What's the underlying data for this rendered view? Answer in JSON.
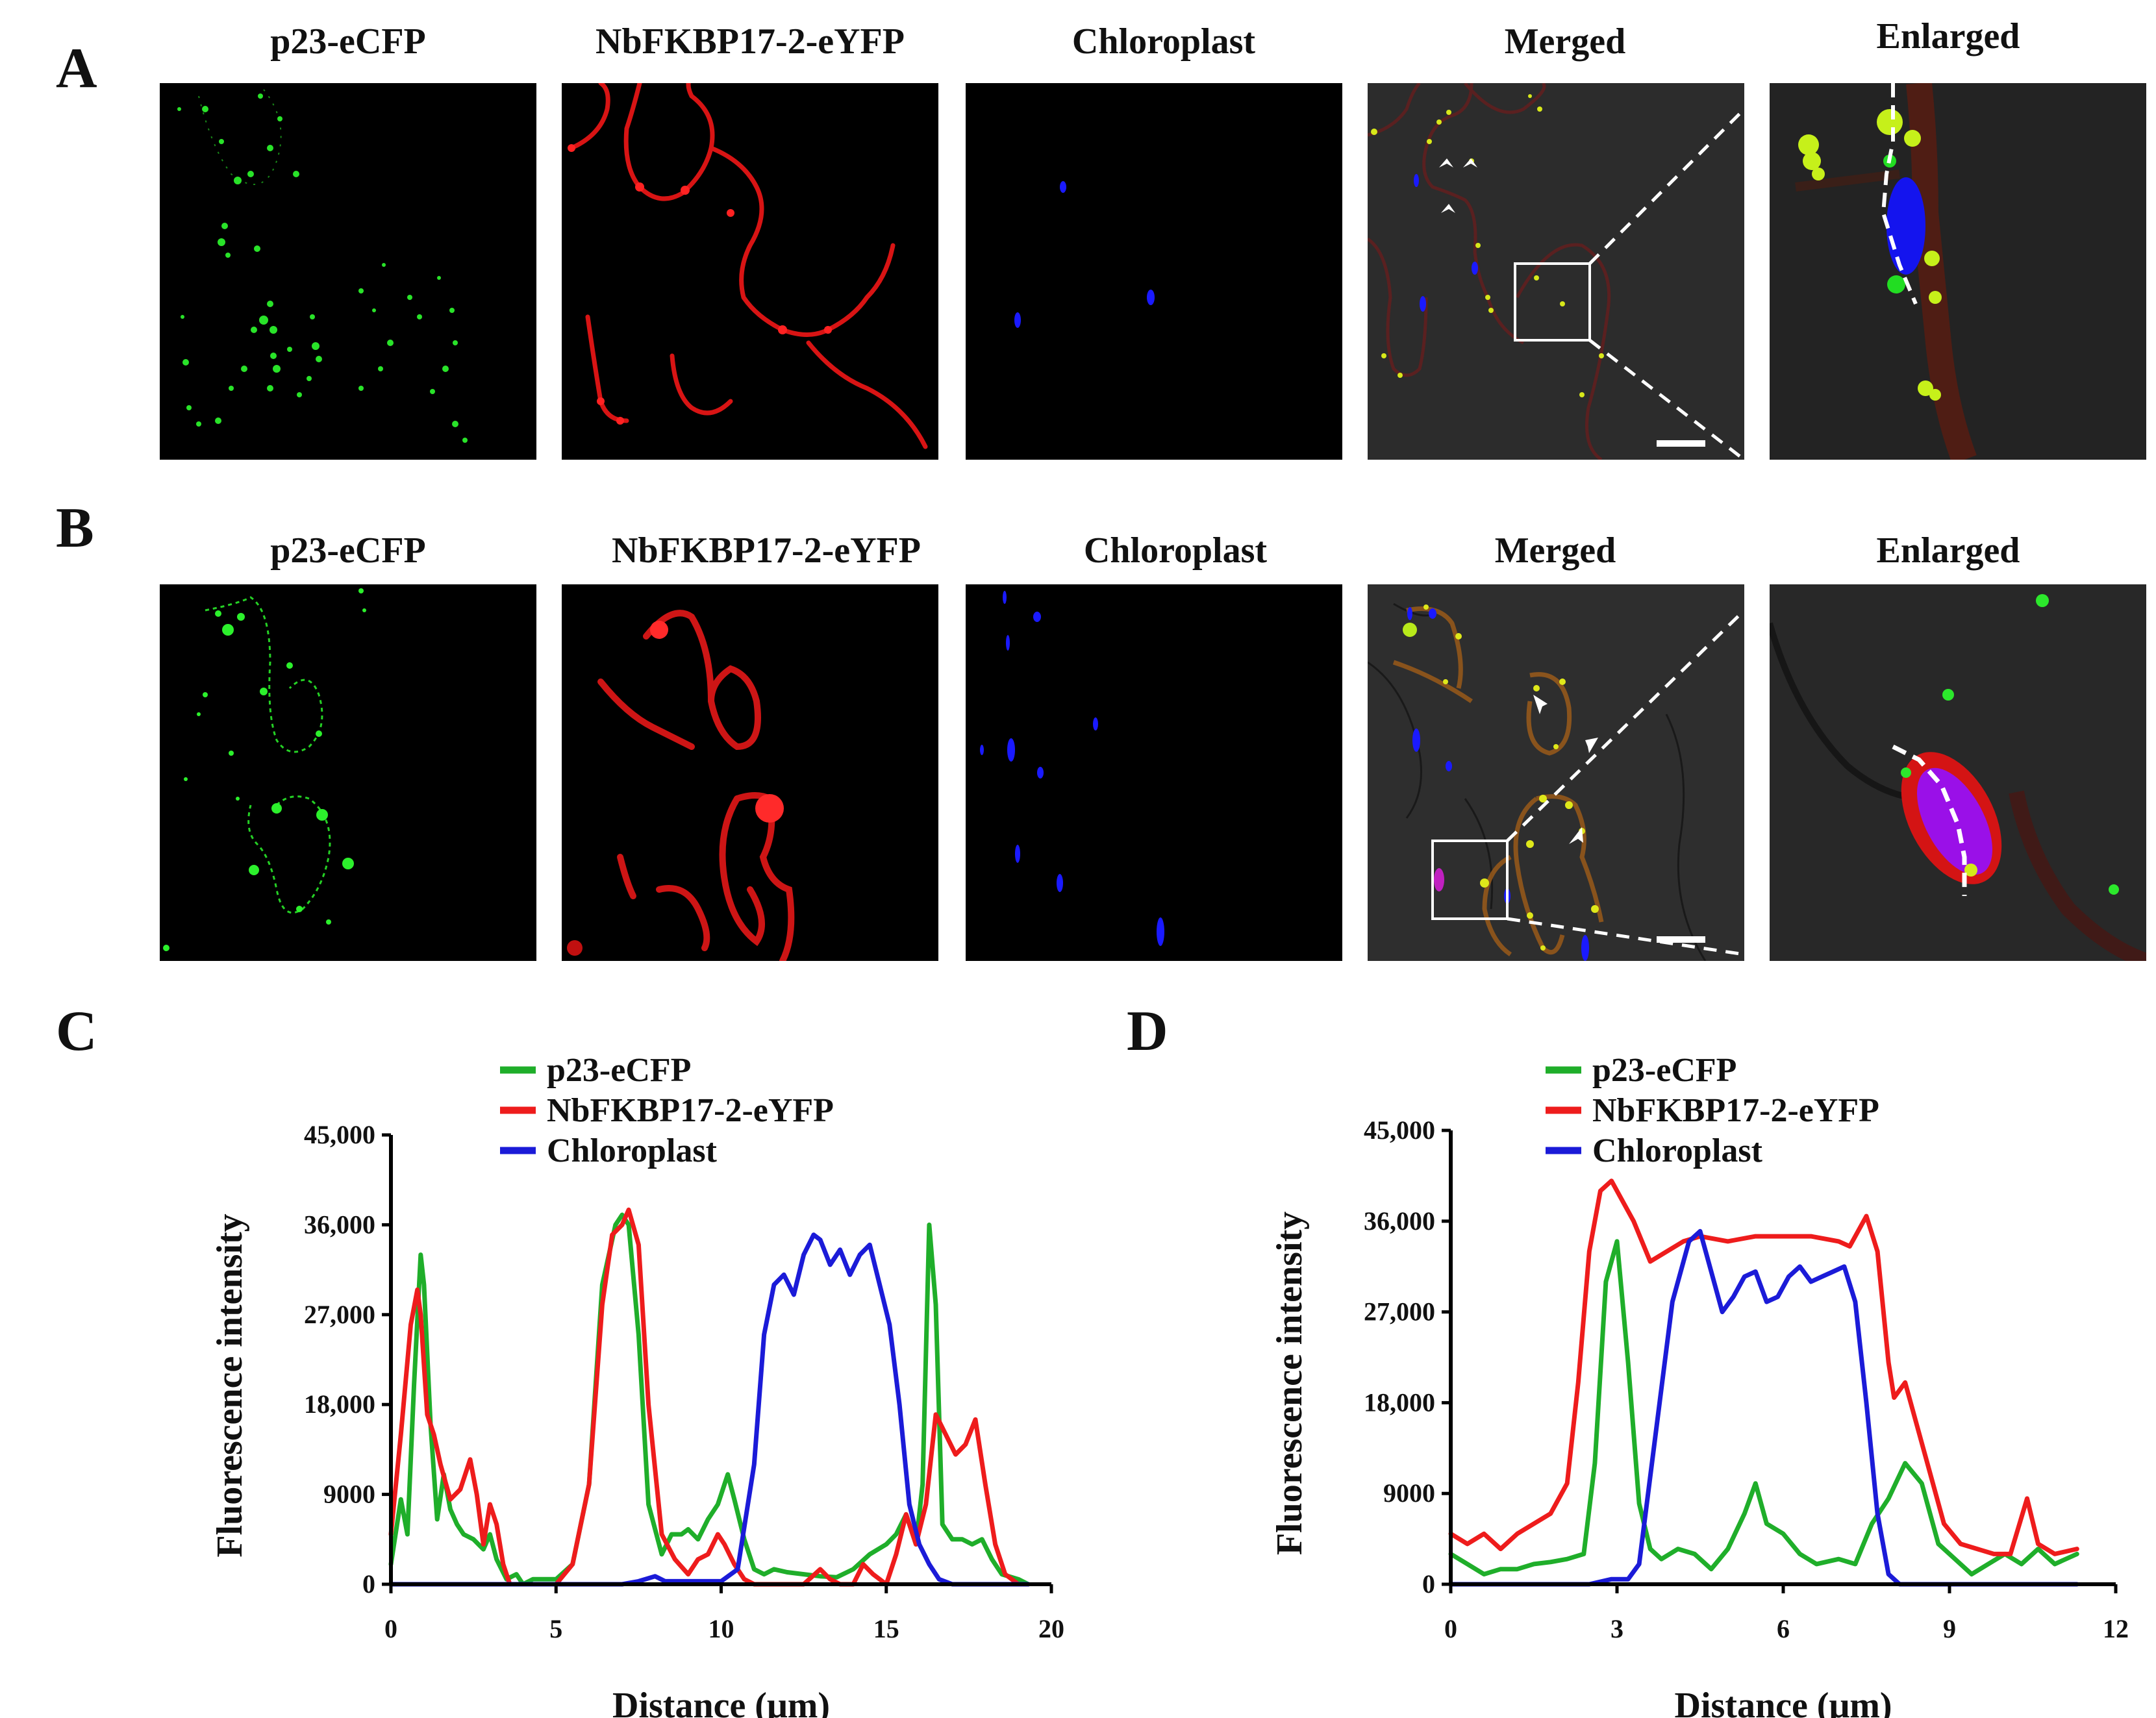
{
  "figure": {
    "panel_labels": {
      "A": "A",
      "B": "B",
      "C": "C",
      "D": "D"
    },
    "row_A": {
      "titles": [
        "p23-eCFP",
        "NbFKBP17-2-eYFP",
        "Chloroplast",
        "Merged",
        "Enlarged"
      ]
    },
    "row_B": {
      "titles": [
        "p23-eCFP",
        "NbFKBP17-2-eYFP",
        "Chloroplast",
        "Merged",
        "Enlarged"
      ]
    },
    "channel_colors": {
      "p23-eCFP": "#22cc22",
      "NbFKBP17-2-eYFP": "#ee1111",
      "Chloroplast": "#1111ee"
    }
  },
  "chart_data": [
    {
      "panel": "C",
      "type": "line",
      "title": "",
      "xlabel": "Distance (μm)",
      "ylabel": "Fluorescence intensity",
      "xlim": [
        0,
        20
      ],
      "ylim": [
        0,
        45000
      ],
      "xticks": [
        0,
        5,
        10,
        15,
        20
      ],
      "yticks": [
        0,
        9000,
        18000,
        27000,
        36000,
        45000
      ],
      "ytick_labels": [
        "0",
        "9000",
        "18,000",
        "27,000",
        "36,000",
        "45,000"
      ],
      "grid": false,
      "legend": {
        "position": "top",
        "entries": [
          "p23-eCFP",
          "NbFKBP17-2-eYFP",
          "Chloroplast"
        ]
      },
      "series": [
        {
          "name": "p23-eCFP",
          "color": "#1fae2a",
          "x": [
            0,
            0.3,
            0.5,
            0.7,
            0.9,
            1.0,
            1.2,
            1.4,
            1.6,
            1.8,
            2.0,
            2.2,
            2.5,
            2.8,
            3.0,
            3.2,
            3.5,
            3.8,
            4.0,
            4.3,
            5.0,
            5.5,
            6.0,
            6.4,
            6.8,
            7.0,
            7.2,
            7.5,
            7.8,
            8.2,
            8.5,
            8.8,
            9.0,
            9.3,
            9.6,
            9.9,
            10.2,
            10.4,
            10.7,
            11.0,
            11.3,
            11.6,
            12.0,
            12.5,
            13.0,
            13.5,
            14.0,
            14.5,
            15.0,
            15.3,
            15.6,
            15.9,
            16.1,
            16.3,
            16.5,
            16.7,
            17.0,
            17.3,
            17.6,
            17.9,
            18.2,
            18.5,
            19.0,
            19.3
          ],
          "y": [
            2000,
            8500,
            5000,
            20000,
            33000,
            30000,
            16000,
            6500,
            11000,
            7500,
            6000,
            5000,
            4500,
            3500,
            5000,
            2500,
            500,
            1000,
            0,
            500,
            500,
            2000,
            10000,
            30000,
            36000,
            37000,
            36000,
            25000,
            8000,
            3000,
            5000,
            5000,
            5500,
            4500,
            6500,
            8000,
            11000,
            8500,
            4500,
            1500,
            1000,
            1500,
            1200,
            1000,
            800,
            700,
            1500,
            3000,
            4000,
            5000,
            7000,
            4000,
            10000,
            36000,
            28000,
            6000,
            4500,
            4500,
            4000,
            4500,
            2500,
            1000,
            500,
            0
          ]
        },
        {
          "name": "NbFKBP17-2-eYFP",
          "color": "#ee1c1c",
          "x": [
            0,
            0.3,
            0.6,
            0.8,
            0.9,
            1.1,
            1.3,
            1.5,
            1.8,
            2.1,
            2.4,
            2.6,
            2.8,
            3.0,
            3.2,
            3.4,
            3.6,
            3.8,
            4.0,
            5.0,
            5.5,
            6.0,
            6.4,
            6.7,
            7.0,
            7.2,
            7.5,
            7.8,
            8.2,
            8.6,
            9.0,
            9.3,
            9.6,
            9.9,
            10.1,
            10.4,
            10.7,
            11.0,
            11.5,
            12.0,
            12.5,
            13.0,
            13.3,
            13.6,
            14.0,
            14.3,
            14.6,
            15.0,
            15.3,
            15.6,
            15.9,
            16.2,
            16.5,
            16.8,
            17.1,
            17.4,
            17.7,
            18.0,
            18.3,
            18.6,
            19.0
          ],
          "y": [
            5000,
            15000,
            26000,
            29500,
            27000,
            17000,
            15000,
            12000,
            8500,
            9500,
            12500,
            9000,
            4000,
            8000,
            6000,
            2000,
            0,
            0,
            0,
            0,
            2000,
            10000,
            28000,
            35000,
            36000,
            37500,
            34000,
            18000,
            5000,
            2500,
            1000,
            2500,
            3000,
            5000,
            4000,
            2000,
            500,
            0,
            0,
            0,
            0,
            1500,
            500,
            0,
            0,
            2000,
            1000,
            0,
            3000,
            7000,
            4000,
            8000,
            17000,
            15000,
            13000,
            14000,
            16500,
            10000,
            4000,
            1000,
            0
          ]
        },
        {
          "name": "Chloroplast",
          "color": "#1b1bd8",
          "x": [
            0,
            5,
            7.0,
            7.5,
            8.0,
            8.3,
            9.0,
            9.5,
            10.0,
            10.5,
            11.0,
            11.3,
            11.6,
            11.9,
            12.2,
            12.5,
            12.8,
            13.0,
            13.3,
            13.6,
            13.9,
            14.2,
            14.5,
            14.8,
            15.1,
            15.4,
            15.7,
            16.0,
            16.3,
            16.6,
            17.0,
            19.3
          ],
          "y": [
            0,
            0,
            0,
            300,
            800,
            300,
            300,
            300,
            300,
            1500,
            12000,
            25000,
            30000,
            31000,
            29000,
            33000,
            35000,
            34500,
            32000,
            33500,
            31000,
            33000,
            34000,
            30000,
            26000,
            18000,
            8000,
            4000,
            2000,
            500,
            0,
            0
          ]
        }
      ]
    },
    {
      "panel": "D",
      "type": "line",
      "title": "",
      "xlabel": "Distance (μm)",
      "ylabel": "Fluorescence intensity",
      "xlim": [
        0,
        12
      ],
      "ylim": [
        0,
        45000
      ],
      "xticks": [
        0,
        3,
        6,
        9,
        12
      ],
      "yticks": [
        0,
        9000,
        18000,
        27000,
        36000,
        45000
      ],
      "ytick_labels": [
        "0",
        "9000",
        "18,000",
        "27,000",
        "36,000",
        "45,000"
      ],
      "grid": false,
      "legend": {
        "position": "top",
        "entries": [
          "p23-eCFP",
          "NbFKBP17-2-eYFP",
          "Chloroplast"
        ]
      },
      "series": [
        {
          "name": "p23-eCFP",
          "color": "#1fae2a",
          "x": [
            0,
            0.3,
            0.6,
            0.9,
            1.2,
            1.5,
            1.8,
            2.1,
            2.4,
            2.6,
            2.8,
            3.0,
            3.2,
            3.4,
            3.6,
            3.8,
            4.1,
            4.4,
            4.7,
            5.0,
            5.3,
            5.5,
            5.7,
            6.0,
            6.3,
            6.6,
            7.0,
            7.3,
            7.6,
            7.9,
            8.2,
            8.5,
            8.8,
            9.1,
            9.4,
            9.7,
            10.0,
            10.3,
            10.6,
            10.9,
            11.3
          ],
          "y": [
            3000,
            2000,
            1000,
            1500,
            1500,
            2000,
            2200,
            2500,
            3000,
            12000,
            30000,
            34000,
            22000,
            8000,
            3500,
            2500,
            3500,
            3000,
            1500,
            3500,
            7000,
            10000,
            6000,
            5000,
            3000,
            2000,
            2500,
            2000,
            6000,
            8500,
            12000,
            10000,
            4000,
            2500,
            1000,
            2000,
            3000,
            2000,
            3500,
            2000,
            3000
          ]
        },
        {
          "name": "NbFKBP17-2-eYFP",
          "color": "#ee1c1c",
          "x": [
            0,
            0.3,
            0.6,
            0.9,
            1.2,
            1.5,
            1.8,
            2.1,
            2.3,
            2.5,
            2.7,
            2.9,
            3.1,
            3.3,
            3.6,
            3.9,
            4.2,
            4.5,
            5.0,
            5.5,
            6.0,
            6.5,
            7.0,
            7.2,
            7.5,
            7.7,
            7.9,
            8.0,
            8.2,
            8.4,
            8.6,
            8.9,
            9.2,
            9.5,
            9.8,
            10.1,
            10.4,
            10.6,
            10.9,
            11.3
          ],
          "y": [
            5000,
            4000,
            5000,
            3500,
            5000,
            6000,
            7000,
            10000,
            20000,
            33000,
            39000,
            40000,
            38000,
            36000,
            32000,
            33000,
            34000,
            34500,
            34000,
            34500,
            34500,
            34500,
            34000,
            33500,
            36500,
            33000,
            22000,
            18500,
            20000,
            16000,
            12000,
            6000,
            4000,
            3500,
            3000,
            3000,
            8500,
            4000,
            3000,
            3500
          ]
        },
        {
          "name": "Chloroplast",
          "color": "#1b1bd8",
          "x": [
            0,
            2.5,
            2.9,
            3.2,
            3.4,
            3.7,
            4.0,
            4.3,
            4.5,
            4.7,
            4.9,
            5.1,
            5.3,
            5.5,
            5.7,
            5.9,
            6.1,
            6.3,
            6.5,
            6.7,
            6.9,
            7.1,
            7.3,
            7.5,
            7.7,
            7.9,
            8.1,
            11.3
          ],
          "y": [
            0,
            0,
            500,
            500,
            2000,
            15000,
            28000,
            34000,
            35000,
            31000,
            27000,
            28500,
            30500,
            31000,
            28000,
            28500,
            30500,
            31500,
            30000,
            30500,
            31000,
            31500,
            28000,
            18000,
            7000,
            1000,
            0,
            0
          ]
        }
      ]
    }
  ]
}
